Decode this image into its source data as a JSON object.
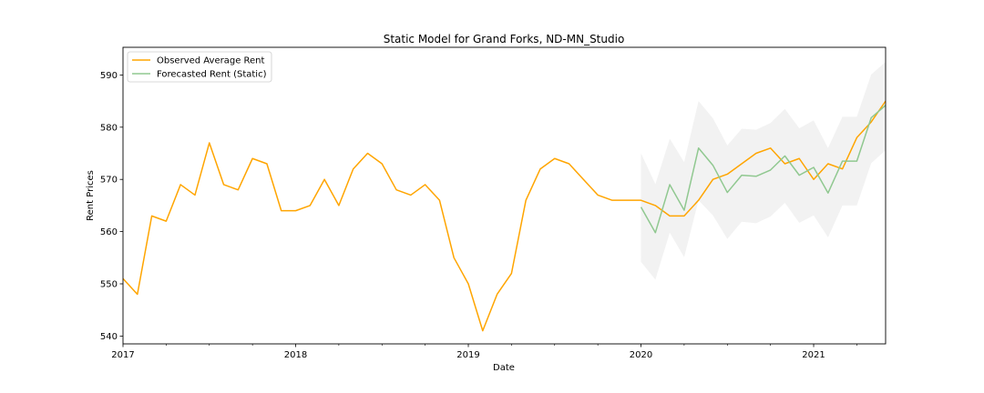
{
  "chart_data": {
    "type": "line",
    "title": "Static Model for Grand Forks, ND-MN_Studio",
    "xlabel": "Date",
    "ylabel": "Rent Prices",
    "x_range": [
      2017.0,
      2021.4167
    ],
    "ylim": [
      538.5,
      595.3
    ],
    "x_ticks": [
      {
        "value": 2017,
        "label": "2017"
      },
      {
        "value": 2018,
        "label": "2018"
      },
      {
        "value": 2019,
        "label": "2019"
      },
      {
        "value": 2020,
        "label": "2020"
      },
      {
        "value": 2021,
        "label": "2021"
      }
    ],
    "y_ticks": [
      540,
      550,
      560,
      570,
      580,
      590
    ],
    "grid": false,
    "legend_position": "top-left",
    "series": [
      {
        "name": "Observed Average Rent",
        "color": "#ffa500",
        "x_start": 2017.0,
        "step_months": 1,
        "values": [
          551,
          548,
          563,
          562,
          569,
          567,
          577,
          569,
          568,
          574,
          573,
          564,
          564,
          565,
          570,
          565,
          572,
          575,
          573,
          568,
          567,
          569,
          566,
          555,
          550,
          541,
          548,
          552,
          566,
          572,
          574,
          573,
          570,
          567,
          566,
          566,
          566,
          565,
          563,
          563,
          566,
          570,
          571,
          573,
          575,
          576,
          573,
          574,
          570,
          573,
          572,
          578,
          581,
          585
        ]
      },
      {
        "name": "Forecasted Rent (Static)",
        "color": "#90c890",
        "x_start": 2020.0,
        "step_months": 1,
        "values": [
          564.7,
          559.8,
          569.0,
          564.1,
          576.0,
          572.7,
          567.5,
          570.8,
          570.6,
          571.8,
          574.5,
          570.8,
          572.3,
          567.4,
          573.5,
          573.5,
          581.8,
          584.2
        ],
        "band_color": "#eeeeee",
        "band_lower": [
          554.2,
          550.8,
          559.8,
          555.1,
          566.0,
          563.1,
          558.6,
          561.9,
          561.6,
          562.9,
          565.5,
          561.7,
          563.1,
          558.9,
          565.0,
          565.0,
          573.1,
          575.6
        ],
        "band_upper": [
          575.0,
          569.1,
          577.8,
          573.3,
          585.0,
          581.7,
          576.5,
          579.7,
          579.5,
          580.8,
          583.5,
          579.8,
          581.3,
          576.0,
          582.0,
          582.0,
          590.1,
          592.5
        ]
      }
    ]
  }
}
